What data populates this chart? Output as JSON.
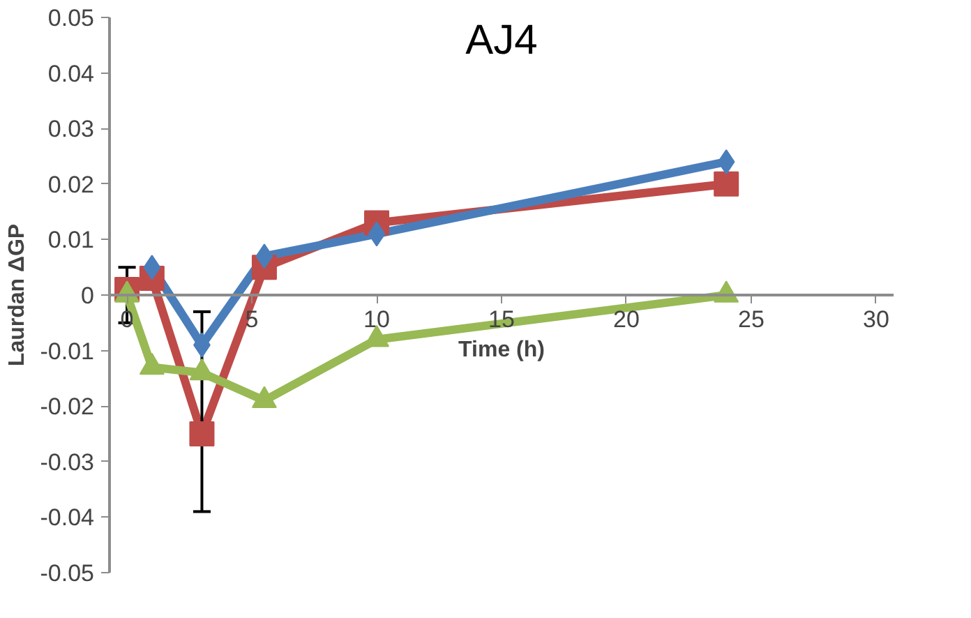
{
  "chart_data": {
    "type": "line",
    "title": "AJ4",
    "xlabel": "Time (h)",
    "ylabel": "Laurdan ΔGP",
    "xlim": [
      -0.7,
      30.7
    ],
    "xticks": [
      0,
      5,
      10,
      15,
      20,
      25,
      30
    ],
    "ylim": [
      -0.05,
      0.05
    ],
    "yticks": [
      -0.05,
      -0.04,
      -0.03,
      -0.02,
      -0.01,
      0,
      0.01,
      0.02,
      0.03,
      0.04,
      0.05
    ],
    "grid": false,
    "line_style": "solid",
    "series": [
      {
        "color": "#be4b48",
        "marker": "square",
        "x": [
          0,
          1,
          3,
          5.5,
          10,
          24
        ],
        "values": [
          0.001,
          0.003,
          -0.025,
          0.005,
          0.013,
          0.02
        ],
        "errors": [
          [
            -0.005,
            0.005
          ],
          null,
          [
            -0.039,
            -0.003
          ],
          null,
          null,
          null
        ]
      },
      {
        "color": "#4a7ebb",
        "marker": "diamond",
        "x": [
          1,
          3,
          5.5,
          10,
          24
        ],
        "values": [
          0.005,
          -0.009,
          0.007,
          0.011,
          0.024
        ]
      },
      {
        "color": "#98b954",
        "marker": "triangle",
        "x": [
          0,
          1,
          3,
          5.5,
          10,
          24
        ],
        "values": [
          0,
          -0.013,
          -0.014,
          -0.019,
          -0.008,
          0
        ]
      }
    ]
  }
}
